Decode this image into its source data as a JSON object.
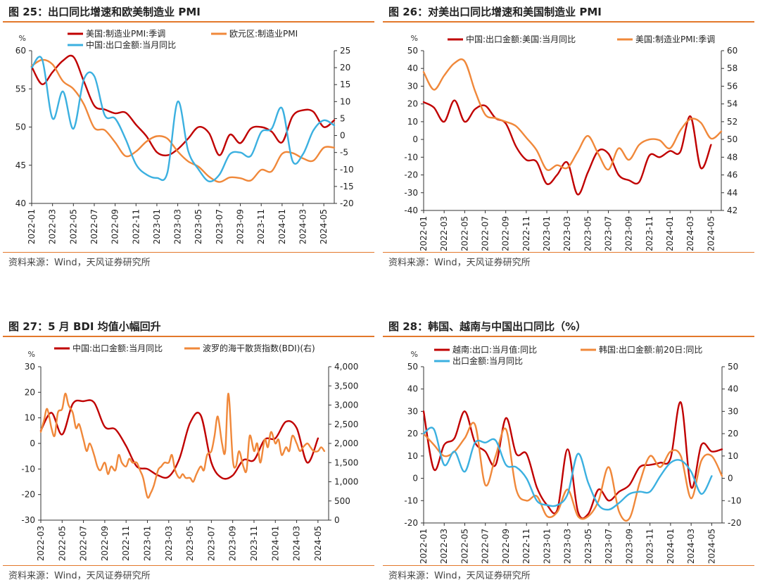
{
  "source_text": "资料来源：Wind，天风证券研究所",
  "colors": {
    "red": "#c00000",
    "orange": "#f0883a",
    "blue": "#3bb0e0",
    "rule": "#e3782b"
  },
  "chart_data": [
    {
      "type": "line",
      "title": "图 25：出口同比增速和欧美制造业 PMI",
      "left_unit": "%",
      "ylim_left": [
        40,
        60
      ],
      "yticks_left": [
        "40",
        "45",
        "50",
        "55",
        "60"
      ],
      "ylim_right": [
        -20,
        25
      ],
      "yticks_right": [
        "-20",
        "-15",
        "-10",
        "-5",
        "0",
        "5",
        "10",
        "15",
        "20",
        "25"
      ],
      "xlim": [
        0,
        29
      ],
      "x_ticks": [
        "2022-01",
        "2022-03",
        "2022-05",
        "2022-07",
        "2022-09",
        "2022-11",
        "2023-01",
        "2023-03",
        "2023-05",
        "2023-07",
        "2023-09",
        "2023-11",
        "2024-01",
        "2024-03",
        "2024-05"
      ],
      "series": [
        {
          "name": "美国:制造业PMI:季调",
          "color": "red",
          "axis": "left",
          "x": [
            0,
            1,
            2,
            3,
            4,
            5,
            6,
            7,
            8,
            9,
            10,
            11,
            12,
            13,
            14,
            15,
            16,
            17,
            18,
            19,
            20,
            21,
            22,
            23,
            24,
            25,
            26,
            27,
            28,
            29
          ],
          "values": [
            57.9,
            55.6,
            57.2,
            58.7,
            59.2,
            56.0,
            52.8,
            52.3,
            51.8,
            51.9,
            50.3,
            48.8,
            46.7,
            46.3,
            47.1,
            48.5,
            50.0,
            49.2,
            46.3,
            49.0,
            47.9,
            49.8,
            50.0,
            49.4,
            48.0,
            51.4,
            52.2,
            52.0,
            50.0,
            50.9
          ]
        },
        {
          "name": "欧元区:制造业PMI",
          "color": "orange",
          "axis": "left",
          "x": [
            0,
            1,
            2,
            3,
            4,
            5,
            6,
            7,
            8,
            9,
            10,
            11,
            12,
            13,
            14,
            15,
            16,
            17,
            18,
            19,
            20,
            21,
            22,
            23,
            24,
            25,
            26,
            27,
            28,
            29
          ],
          "values": [
            58.0,
            58.8,
            58.2,
            56.0,
            55.0,
            53.0,
            49.9,
            49.6,
            48.0,
            46.2,
            46.8,
            48.1,
            48.8,
            48.5,
            46.8,
            45.5,
            44.8,
            43.5,
            42.8,
            43.4,
            43.3,
            43.0,
            44.4,
            44.2,
            46.5,
            46.6,
            45.9,
            45.6,
            47.3,
            47.3
          ]
        },
        {
          "name": "中国:出口金额:当月同比",
          "color": "blue",
          "axis": "right",
          "x": [
            0,
            1,
            2,
            3,
            4,
            5,
            6,
            7,
            8,
            9,
            10,
            11,
            12,
            13,
            14,
            15,
            16,
            17,
            18,
            19,
            20,
            21,
            22,
            23,
            24,
            25,
            26,
            27,
            28,
            29
          ],
          "values": [
            20.0,
            22.5,
            5.0,
            13.0,
            2.0,
            16.5,
            17.5,
            6.0,
            5.0,
            -1.0,
            -8.5,
            -11.5,
            -12.5,
            -11.0,
            10.0,
            -4.5,
            -10.0,
            -13.5,
            -11.5,
            -5.5,
            -5.0,
            -6.0,
            1.0,
            2.0,
            8.0,
            -7.5,
            -5.5,
            1.5,
            4.5,
            3.0
          ]
        }
      ]
    },
    {
      "type": "line",
      "title": "图 26：对美出口同比增速和美国制造业 PMI",
      "left_unit": "%",
      "ylim_left": [
        -40,
        50
      ],
      "yticks_left": [
        "-40",
        "-30",
        "-20",
        "-10",
        "0",
        "10",
        "20",
        "30",
        "40",
        "50"
      ],
      "ylim_right": [
        42,
        60
      ],
      "yticks_right": [
        "42",
        "44",
        "46",
        "48",
        "50",
        "52",
        "54",
        "56",
        "58",
        "60"
      ],
      "xlim": [
        0,
        29
      ],
      "x_ticks": [
        "2022-01",
        "2022-03",
        "2022-05",
        "2022-07",
        "2022-09",
        "2022-11",
        "2023-01",
        "2023-03",
        "2023-05",
        "2023-07",
        "2023-09",
        "2023-11",
        "2024-01",
        "2024-03",
        "2024-05"
      ],
      "series": [
        {
          "name": "中国:出口金额:美国:当月同比",
          "color": "red",
          "axis": "left",
          "x": [
            0,
            1,
            2,
            3,
            4,
            5,
            6,
            7,
            8,
            9,
            10,
            11,
            12,
            13,
            14,
            15,
            16,
            17,
            18,
            19,
            20,
            21,
            22,
            23,
            24,
            25,
            26,
            27,
            28
          ],
          "values": [
            21.0,
            18.0,
            10.0,
            22.0,
            10.0,
            17.0,
            19.0,
            12.0,
            9.0,
            -4.0,
            -11.5,
            -12.5,
            -25.0,
            -20.0,
            -13.0,
            -31.0,
            -18.5,
            -6.5,
            -8.0,
            -20.0,
            -23.0,
            -24.0,
            -9.0,
            -10.0,
            -6.5,
            -7.0,
            13.0,
            -16.0,
            -3.0
          ]
        },
        {
          "name": "美国:制造业PMI:季调",
          "color": "orange",
          "axis": "right",
          "x": [
            0,
            1,
            2,
            3,
            4,
            5,
            6,
            7,
            8,
            9,
            10,
            11,
            12,
            13,
            14,
            15,
            16,
            17,
            18,
            19,
            20,
            21,
            22,
            23,
            24,
            25,
            26,
            27,
            28,
            29
          ],
          "values": [
            57.6,
            55.6,
            57.2,
            58.6,
            58.8,
            55.5,
            52.8,
            52.4,
            52.0,
            51.5,
            50.2,
            48.8,
            46.6,
            47.1,
            46.8,
            48.6,
            50.4,
            48.4,
            46.6,
            49.0,
            47.7,
            49.4,
            50.0,
            49.9,
            49.0,
            51.0,
            52.3,
            51.9,
            50.1,
            50.9
          ]
        }
      ]
    },
    {
      "type": "line",
      "title": "图 27：5 月 BDI 均值小幅回升",
      "left_unit": "%",
      "ylim_left": [
        -30,
        30
      ],
      "yticks_left": [
        "-30",
        "-20",
        "-10",
        "0",
        "10",
        "20",
        "30"
      ],
      "ylim_right": [
        0,
        4000
      ],
      "yticks_right": [
        "0",
        "500",
        "1,000",
        "1,500",
        "2,000",
        "2,500",
        "3,000",
        "3,500",
        "4,000"
      ],
      "xlim": [
        0,
        27
      ],
      "x_ticks": [
        "2022-03",
        "2022-05",
        "2022-07",
        "2022-09",
        "2022-11",
        "2023-01",
        "2023-03",
        "2023-05",
        "2023-07",
        "2023-09",
        "2023-11",
        "2024-01",
        "2024-03",
        "2024-05"
      ],
      "series": [
        {
          "name": "中国:出口金额:当月同比",
          "color": "red",
          "axis": "left",
          "x": [
            0,
            1,
            2,
            3,
            4,
            5,
            6,
            7,
            8,
            9,
            10,
            11,
            12,
            13,
            14,
            15,
            16,
            17,
            18,
            19,
            20,
            21,
            22,
            23,
            24,
            25,
            26
          ],
          "values": [
            5.0,
            12.0,
            3.5,
            15.5,
            16.5,
            16.0,
            6.5,
            5.5,
            -1.0,
            -9.0,
            -10.0,
            -12.5,
            -13.0,
            -6.0,
            8.0,
            11.0,
            -7.5,
            -13.5,
            -12.5,
            -6.5,
            -6.5,
            1.5,
            2.0,
            8.5,
            6.0,
            -7.5,
            2.0
          ]
        },
        {
          "name": "波罗的海干散货指数(BDI)(右)",
          "color": "orange",
          "axis": "right",
          "x": [
            0,
            0.3,
            0.6,
            1,
            1.3,
            1.6,
            2,
            2.3,
            2.6,
            3,
            3.3,
            3.6,
            4,
            4.3,
            4.6,
            5,
            5.3,
            5.6,
            6,
            6.3,
            6.6,
            7,
            7.3,
            7.6,
            8,
            8.3,
            8.6,
            9,
            9.3,
            9.6,
            10,
            10.3,
            10.6,
            11,
            11.3,
            11.6,
            12,
            12.3,
            12.6,
            13,
            13.3,
            13.6,
            14,
            14.3,
            14.6,
            15,
            15.3,
            15.6,
            16,
            16.3,
            16.6,
            17,
            17.3,
            17.6,
            18,
            18.3,
            18.6,
            19,
            19.3,
            19.6,
            20,
            20.3,
            20.6,
            21,
            21.3,
            21.6,
            22,
            22.3,
            22.6,
            23,
            23.3,
            23.6,
            24,
            24.3,
            24.6,
            25,
            25.3,
            25.6,
            26,
            26.3,
            26.6
          ],
          "values": [
            2300,
            2600,
            2900,
            2400,
            2200,
            2800,
            2900,
            3300,
            3000,
            2800,
            2400,
            2500,
            2100,
            1800,
            2000,
            1700,
            1400,
            1300,
            1500,
            1200,
            1400,
            1300,
            1700,
            1500,
            1400,
            1600,
            1500,
            1500,
            1300,
            1100,
            600,
            700,
            900,
            1300,
            1400,
            1500,
            1500,
            1700,
            1300,
            1100,
            1200,
            1100,
            1100,
            1000,
            1200,
            1400,
            1300,
            1700,
            1800,
            2200,
            2700,
            2000,
            1800,
            3300,
            1600,
            1400,
            1800,
            1400,
            1300,
            2200,
            1800,
            2000,
            1500,
            2100,
            1900,
            2300,
            2000,
            2100,
            1700,
            1900,
            1800,
            2200,
            2000,
            1800,
            1900,
            2000,
            1900,
            1800,
            1800,
            1900,
            1800
          ]
        }
      ]
    },
    {
      "type": "line",
      "title": "图 28：韩国、越南与中国出口同比（%）",
      "left_unit": "%",
      "ylim_left": [
        -20,
        50
      ],
      "yticks_left": [
        "-20",
        "-10",
        "0",
        "10",
        "20",
        "30",
        "40",
        "50"
      ],
      "ylim_right": [
        -20,
        50
      ],
      "yticks_right": [
        "-20",
        "-10",
        "0",
        "10",
        "20",
        "30",
        "40",
        "50"
      ],
      "xlim": [
        0,
        29
      ],
      "x_ticks": [
        "2022-01",
        "2022-03",
        "2022-05",
        "2022-07",
        "2022-09",
        "2022-11",
        "2023-01",
        "2023-03",
        "2023-05",
        "2023-07",
        "2023-09",
        "2023-11",
        "2024-01",
        "2024-03",
        "2024-05"
      ],
      "series": [
        {
          "name": "越南:出口:当月值:同比",
          "color": "red",
          "axis": "left",
          "x": [
            0,
            1,
            2,
            3,
            4,
            5,
            6,
            7,
            8,
            9,
            10,
            11,
            12,
            13,
            14,
            15,
            16,
            17,
            18,
            19,
            20,
            21,
            22,
            23,
            24,
            25,
            26,
            27,
            28,
            29
          ],
          "values": [
            30,
            4,
            15,
            18,
            30,
            16,
            12,
            6,
            27,
            11,
            11,
            -4,
            -12,
            -14,
            13,
            -15,
            -16,
            -5,
            -10,
            -6,
            -3,
            5,
            6,
            7,
            9,
            34,
            -4,
            15,
            12,
            13
          ]
        },
        {
          "name": "韩国:出口金额:前20日:同比",
          "color": "orange",
          "axis": "left",
          "x": [
            0,
            1,
            2,
            3,
            4,
            5,
            6,
            7,
            8,
            9,
            10,
            11,
            12,
            13,
            14,
            15,
            16,
            17,
            18,
            19,
            20,
            21,
            22,
            23,
            24,
            25,
            26,
            27,
            28,
            29
          ],
          "values": [
            20,
            15,
            10,
            12,
            18,
            24,
            -3,
            10,
            22,
            -5,
            -10,
            -8,
            -17,
            -15,
            -5,
            -17,
            -17,
            -10,
            5,
            -15,
            -18,
            -2,
            10,
            5,
            12,
            10,
            -9,
            8,
            10,
            1
          ]
        },
        {
          "name": "出口金额:当月同比",
          "color": "blue",
          "axis": "left",
          "x": [
            0,
            1,
            2,
            3,
            4,
            5,
            6,
            7,
            8,
            9,
            10,
            11,
            12,
            13,
            14,
            15,
            16,
            17,
            18,
            19,
            20,
            21,
            22,
            23,
            24,
            25,
            26,
            27,
            28
          ],
          "values": [
            20,
            22,
            6,
            12,
            3,
            16,
            16,
            17,
            6,
            5,
            0,
            -10,
            -12,
            -12,
            -7,
            11,
            -2,
            -12,
            -14,
            -11,
            -7,
            -6,
            -6,
            1,
            7,
            8,
            3,
            -7,
            1
          ]
        }
      ]
    }
  ]
}
